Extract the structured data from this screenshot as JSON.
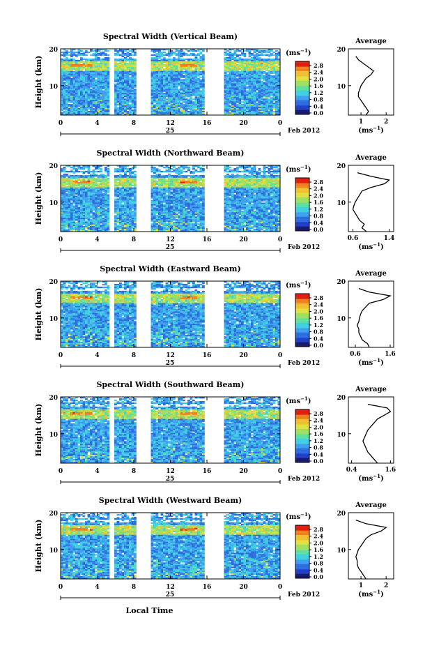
{
  "figure": {
    "colorbar_unit": "(ms",
    "colorbar_unit_sup": "−1",
    "colorbar_ticks": [
      "2.8",
      "2.4",
      "2.0",
      "1.6",
      "1.2",
      "0.8",
      "0.4",
      "0.0"
    ],
    "height_label": "Height (km)",
    "height_ticks": [
      "20",
      "10"
    ],
    "time_ticks": [
      "0",
      "4",
      "8",
      "12",
      "16",
      "20",
      "0"
    ],
    "date_day": "25",
    "date_label": "Feb 2012",
    "xlabel_bottom": "Local Time",
    "avg_title": "Average",
    "avg_xlabel": "(ms",
    "avg_xlabel_sup": "−1",
    "colormap": [
      "#1a1a6e",
      "#2040c8",
      "#2f6ee0",
      "#3fa0f0",
      "#40d0e0",
      "#60e0a0",
      "#a0e060",
      "#e0e040",
      "#f0c030",
      "#f08020",
      "#e02010"
    ]
  },
  "chart_data": [
    {
      "type": "heatmap",
      "title": "Spectral Width (Vertical Beam)",
      "ylabel": "Height (km)",
      "ylim": [
        2,
        20
      ],
      "xlabel": "",
      "xlim": [
        0,
        24
      ],
      "colorbar_range": [
        0.0,
        3.0
      ],
      "data_gaps_hours": [
        [
          5.4,
          6.0
        ],
        [
          8.2,
          10.0
        ],
        [
          15.7,
          18.0
        ]
      ],
      "average_profile": {
        "title": "Average",
        "xticks": [
          "1",
          "2"
        ],
        "xlim": [
          0.5,
          2.3
        ],
        "x": [
          1.2,
          1.3,
          1.2,
          1.1,
          1.0,
          0.9,
          0.9,
          0.95,
          1.0,
          1.1,
          1.2,
          1.4,
          1.5,
          1.3,
          1.1,
          0.9,
          0.8
        ],
        "height_km": [
          2,
          3,
          4,
          5,
          6,
          7,
          8,
          9,
          10,
          11,
          12,
          13,
          14,
          15,
          16,
          17,
          18
        ]
      }
    },
    {
      "type": "heatmap",
      "title": "Spectral Width (Northward Beam)",
      "ylabel": "Height (km)",
      "ylim": [
        2,
        20
      ],
      "xlabel": "",
      "xlim": [
        0,
        24
      ],
      "colorbar_range": [
        0.0,
        3.0
      ],
      "data_gaps_hours": [
        [
          5.4,
          6.0
        ],
        [
          8.2,
          10.0
        ],
        [
          15.7,
          18.0
        ]
      ],
      "average_profile": {
        "title": "Average",
        "xticks": [
          "0.6",
          "1.4"
        ],
        "xlim": [
          0.5,
          1.5
        ],
        "x": [
          0.9,
          0.8,
          0.85,
          0.75,
          0.7,
          0.65,
          0.6,
          0.62,
          0.65,
          0.7,
          0.75,
          0.8,
          1.0,
          1.3,
          1.4,
          1.0,
          0.7
        ],
        "height_km": [
          2,
          3,
          4,
          5,
          6,
          7,
          8,
          9,
          10,
          11,
          12,
          13,
          14,
          15,
          16,
          17,
          18
        ]
      }
    },
    {
      "type": "heatmap",
      "title": "Spectral Width (Eastward Beam)",
      "ylabel": "Height (km)",
      "ylim": [
        2,
        20
      ],
      "xlabel": "",
      "xlim": [
        0,
        24
      ],
      "colorbar_range": [
        0.0,
        3.0
      ],
      "data_gaps_hours": [
        [
          5.4,
          6.0
        ],
        [
          8.2,
          10.0
        ],
        [
          15.7,
          18.0
        ]
      ],
      "average_profile": {
        "title": "Average",
        "xticks": [
          "0.6",
          "1.6"
        ],
        "xlim": [
          0.4,
          1.7
        ],
        "x": [
          1.0,
          0.95,
          0.8,
          0.75,
          0.7,
          0.7,
          0.65,
          0.7,
          0.72,
          0.75,
          0.8,
          0.9,
          1.0,
          1.4,
          1.6,
          1.0,
          0.7
        ],
        "height_km": [
          2,
          3,
          4,
          5,
          6,
          7,
          8,
          9,
          10,
          11,
          12,
          13,
          14,
          15,
          16,
          17,
          18
        ]
      }
    },
    {
      "type": "heatmap",
      "title": "Spectral Width (Southward Beam)",
      "ylabel": "Height (km)",
      "ylim": [
        2,
        20
      ],
      "xlabel": "",
      "xlim": [
        0,
        24
      ],
      "colorbar_range": [
        0.0,
        3.0
      ],
      "data_gaps_hours": [
        [
          5.4,
          6.0
        ],
        [
          8.2,
          10.0
        ],
        [
          15.7,
          18.0
        ]
      ],
      "average_profile": {
        "title": "Average",
        "xticks": [
          "0.4",
          "1.6"
        ],
        "xlim": [
          0.3,
          1.7
        ],
        "x": [
          1.2,
          1.1,
          1.0,
          0.9,
          0.85,
          0.8,
          0.75,
          0.8,
          0.85,
          0.9,
          1.0,
          1.1,
          1.2,
          1.4,
          1.6,
          1.5,
          0.9
        ],
        "height_km": [
          2,
          3,
          4,
          5,
          6,
          7,
          8,
          9,
          10,
          11,
          12,
          13,
          14,
          15,
          16,
          17,
          18
        ]
      }
    },
    {
      "type": "heatmap",
      "title": "Spectral Width (Westward Beam)",
      "ylabel": "Height (km)",
      "ylim": [
        2,
        20
      ],
      "xlabel": "Local Time",
      "xlim": [
        0,
        24
      ],
      "colorbar_range": [
        0.0,
        3.0
      ],
      "data_gaps_hours": [
        [
          5.4,
          6.0
        ],
        [
          8.2,
          10.0
        ],
        [
          15.7,
          18.0
        ]
      ],
      "average_profile": {
        "title": "Average",
        "xticks": [
          "1",
          "2"
        ],
        "xlim": [
          0.5,
          2.3
        ],
        "x": [
          1.2,
          1.1,
          1.0,
          0.9,
          0.85,
          0.85,
          0.8,
          0.85,
          0.9,
          1.0,
          1.1,
          1.2,
          1.4,
          1.8,
          2.0,
          1.2,
          0.8
        ],
        "height_km": [
          2,
          3,
          4,
          5,
          6,
          7,
          8,
          9,
          10,
          11,
          12,
          13,
          14,
          15,
          16,
          17,
          18
        ]
      }
    }
  ]
}
